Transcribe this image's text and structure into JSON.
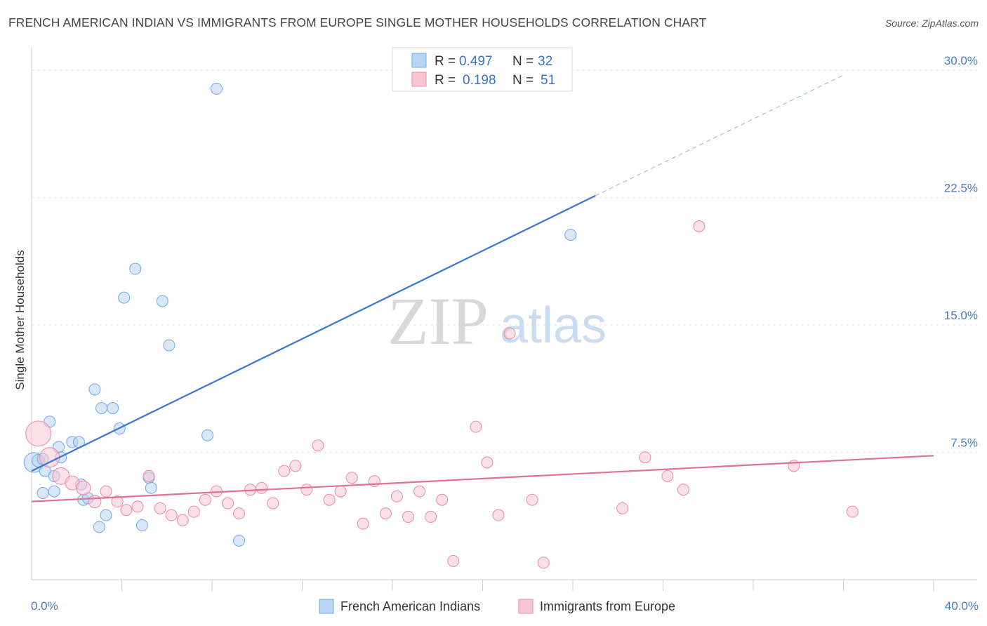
{
  "title": "FRENCH AMERICAN INDIAN VS IMMIGRANTS FROM EUROPE SINGLE MOTHER HOUSEHOLDS CORRELATION CHART",
  "source": "Source: ZipAtlas.com",
  "watermark": {
    "zip": "ZIP",
    "atlas": "atlas"
  },
  "chart_data": {
    "type": "scatter",
    "title": "FRENCH AMERICAN INDIAN VS IMMIGRANTS FROM EUROPE SINGLE MOTHER HOUSEHOLDS CORRELATION CHART",
    "xlabel": "",
    "ylabel": "Single Mother Households",
    "xlim": [
      0,
      40
    ],
    "ylim": [
      0,
      30.9
    ],
    "x_tick_labels": [
      "0.0%",
      "40.0%"
    ],
    "y_ticks": [
      7.5,
      15.0,
      22.5,
      30.0
    ],
    "y_tick_labels": [
      "7.5%",
      "15.0%",
      "22.5%",
      "30.0%"
    ],
    "legend": {
      "position": "top-center",
      "entries": [
        {
          "r_label": "R =",
          "r_value": "0.497",
          "n_label": "N =",
          "n_value": "32"
        },
        {
          "r_label": "R =",
          "r_value": "0.198",
          "n_label": "N =",
          "n_value": "51"
        }
      ]
    },
    "series": [
      {
        "name": "French American Indians",
        "color": "#6fa8e6",
        "fill": "#b9d3f2",
        "trend": {
          "x0": 0,
          "y0": 6.4,
          "x1": 25,
          "y1": 22.6,
          "dashed_to_x": 36,
          "dashed_to_y": 29.7,
          "color": "#3a78d0"
        },
        "points": [
          [
            0.1,
            6.9,
            14
          ],
          [
            0.3,
            7.0,
            9
          ],
          [
            0.5,
            5.1,
            8
          ],
          [
            0.6,
            6.4,
            8
          ],
          [
            0.8,
            9.3,
            8
          ],
          [
            1.0,
            6.1,
            8
          ],
          [
            1.2,
            7.8,
            8
          ],
          [
            1.3,
            7.2,
            8
          ],
          [
            1.8,
            8.1,
            8
          ],
          [
            2.1,
            8.1,
            8
          ],
          [
            2.2,
            5.6,
            8
          ],
          [
            2.3,
            4.7,
            8
          ],
          [
            2.8,
            11.2,
            8
          ],
          [
            3.0,
            3.1,
            8
          ],
          [
            3.1,
            10.1,
            8
          ],
          [
            3.3,
            3.8,
            8
          ],
          [
            3.6,
            10.1,
            8
          ],
          [
            3.9,
            8.9,
            8
          ],
          [
            4.1,
            16.6,
            8
          ],
          [
            4.6,
            18.3,
            8
          ],
          [
            4.9,
            3.2,
            8
          ],
          [
            5.2,
            6.0,
            8
          ],
          [
            5.3,
            5.4,
            8
          ],
          [
            5.8,
            16.4,
            8
          ],
          [
            6.1,
            13.8,
            8
          ],
          [
            7.8,
            8.5,
            8
          ],
          [
            8.2,
            28.9,
            8
          ],
          [
            9.2,
            2.3,
            8
          ],
          [
            23.9,
            20.3,
            8
          ],
          [
            1.0,
            5.2,
            8
          ],
          [
            0.5,
            7.1,
            8
          ],
          [
            2.5,
            4.8,
            8
          ]
        ]
      },
      {
        "name": "Immigrants from Europe",
        "color": "#e88aa8",
        "fill": "#f7c6d5",
        "trend": {
          "x0": 0,
          "y0": 4.6,
          "x1": 40,
          "y1": 7.3,
          "color": "#e0709a"
        },
        "points": [
          [
            0.3,
            8.6,
            18
          ],
          [
            0.8,
            7.2,
            14
          ],
          [
            1.3,
            6.1,
            12
          ],
          [
            1.8,
            5.7,
            10
          ],
          [
            2.3,
            5.4,
            10
          ],
          [
            2.8,
            4.6,
            9
          ],
          [
            3.3,
            5.2,
            8
          ],
          [
            3.8,
            4.6,
            8
          ],
          [
            4.2,
            4.1,
            8
          ],
          [
            4.7,
            4.3,
            8
          ],
          [
            5.2,
            6.1,
            8
          ],
          [
            5.7,
            4.2,
            8
          ],
          [
            6.2,
            3.8,
            8
          ],
          [
            6.7,
            3.5,
            8
          ],
          [
            7.2,
            4.0,
            8
          ],
          [
            7.7,
            4.7,
            8
          ],
          [
            8.2,
            5.2,
            8
          ],
          [
            8.7,
            4.5,
            8
          ],
          [
            9.2,
            3.9,
            8
          ],
          [
            9.7,
            5.3,
            8
          ],
          [
            10.2,
            5.4,
            8
          ],
          [
            10.7,
            4.5,
            8
          ],
          [
            11.2,
            6.4,
            8
          ],
          [
            11.7,
            6.7,
            8
          ],
          [
            12.2,
            5.3,
            8
          ],
          [
            12.7,
            7.9,
            8
          ],
          [
            13.2,
            4.7,
            8
          ],
          [
            13.7,
            5.2,
            8
          ],
          [
            14.2,
            6.0,
            8
          ],
          [
            14.7,
            3.3,
            8
          ],
          [
            15.2,
            5.8,
            8
          ],
          [
            15.7,
            3.9,
            8
          ],
          [
            16.2,
            4.9,
            8
          ],
          [
            16.7,
            3.7,
            8
          ],
          [
            17.2,
            5.2,
            8
          ],
          [
            17.7,
            3.7,
            8
          ],
          [
            18.2,
            4.7,
            8
          ],
          [
            18.7,
            1.1,
            8
          ],
          [
            19.7,
            9.0,
            8
          ],
          [
            20.2,
            6.9,
            8
          ],
          [
            20.7,
            3.8,
            8
          ],
          [
            21.2,
            14.5,
            8
          ],
          [
            22.2,
            4.7,
            8
          ],
          [
            22.7,
            1.0,
            8
          ],
          [
            26.2,
            4.2,
            8
          ],
          [
            27.2,
            7.2,
            8
          ],
          [
            28.2,
            6.1,
            8
          ],
          [
            28.9,
            5.3,
            8
          ],
          [
            29.6,
            20.8,
            8
          ],
          [
            33.8,
            6.7,
            8
          ],
          [
            36.4,
            4.0,
            8
          ]
        ]
      }
    ]
  }
}
